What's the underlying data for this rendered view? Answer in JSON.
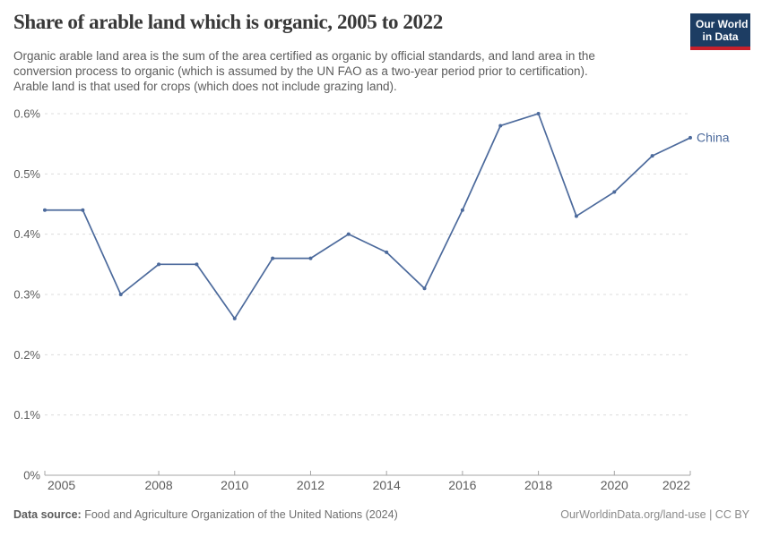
{
  "header": {
    "title": "Share of arable land which is organic, 2005 to 2022",
    "subtitle_lines": [
      "Organic arable land area is the sum of the area certified as organic by official standards, and land area in the",
      "conversion process to organic (which is assumed by the UN FAO as a two-year period prior to certification).",
      "Arable land is that used for crops (which does not include grazing land)."
    ],
    "logo": {
      "line1": "Our World",
      "line2": "in Data"
    }
  },
  "chart_data": {
    "type": "line",
    "title": "Share of arable land which is organic, 2005 to 2022",
    "x": [
      2005,
      2006,
      2007,
      2008,
      2009,
      2010,
      2011,
      2012,
      2013,
      2014,
      2015,
      2016,
      2017,
      2018,
      2019,
      2020,
      2021,
      2022
    ],
    "series": [
      {
        "name": "China",
        "color": "#4c6a9c",
        "values": [
          0.44,
          0.44,
          0.3,
          0.35,
          0.35,
          0.26,
          0.36,
          0.36,
          0.4,
          0.37,
          0.31,
          0.44,
          0.58,
          0.6,
          0.43,
          0.47,
          0.53,
          0.56
        ]
      }
    ],
    "unit": "%",
    "xlabel": "",
    "ylabel": "",
    "ylim": [
      0,
      0.6
    ],
    "xlim": [
      2005,
      2022
    ],
    "ytick_values": [
      0,
      0.1,
      0.2,
      0.3,
      0.4,
      0.5,
      0.6
    ],
    "ytick_labels": [
      "0%",
      "0.1%",
      "0.2%",
      "0.3%",
      "0.4%",
      "0.5%",
      "0.6%"
    ],
    "xtick_values": [
      2005,
      2008,
      2010,
      2012,
      2014,
      2016,
      2018,
      2020,
      2022
    ],
    "grid": true,
    "grid_style": "dashed",
    "legend_position": "end-of-line-label"
  },
  "footer": {
    "datasource_label": "Data source:",
    "datasource_value": "Food and Agriculture Organization of the United Nations (2024)",
    "credit": "OurWorldinData.org/land-use | CC BY"
  },
  "colors": {
    "line": "#4c6a9c",
    "grid": "#dcdcdc",
    "axis": "#a4a4a4",
    "tick_label": "#5c5c5c",
    "logo_bg": "#1d3d63",
    "logo_accent": "#c7202b"
  }
}
